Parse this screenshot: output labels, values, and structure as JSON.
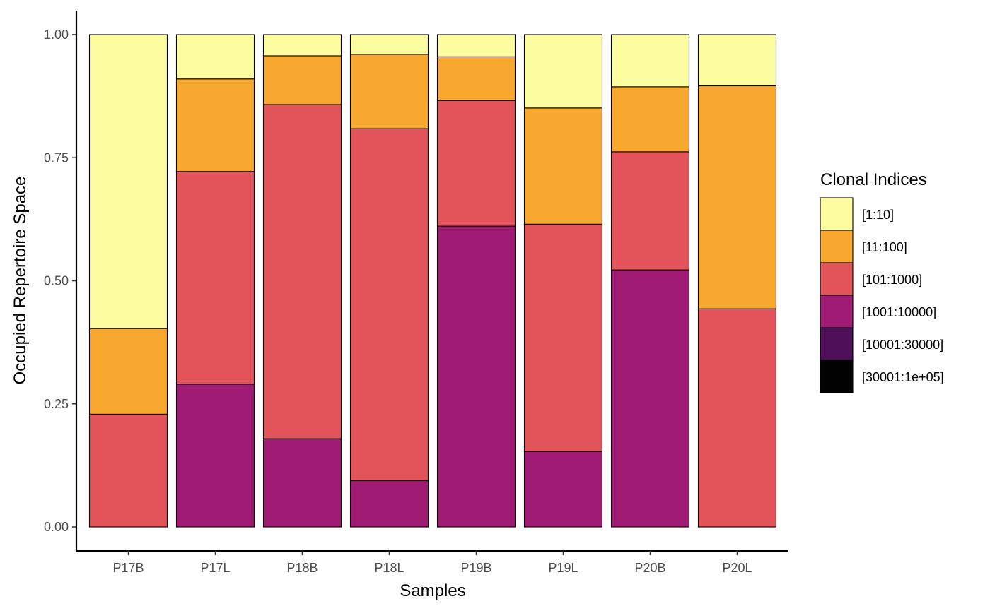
{
  "chart_data": {
    "type": "bar",
    "stacked": true,
    "title": "",
    "xlabel": "Samples",
    "ylabel": "Occupied Repertoire Space",
    "ylim": [
      0,
      1
    ],
    "yticks": [
      "0.00",
      "0.25",
      "0.50",
      "0.75",
      "1.00"
    ],
    "grid": false,
    "legend_position": "right",
    "legend_title": "Clonal Indices",
    "categories": [
      "P17B",
      "P17L",
      "P18B",
      "P18L",
      "P19B",
      "P19L",
      "P20B",
      "P20L"
    ],
    "series": [
      {
        "name": "[1:10]",
        "color": "#FCFDA0",
        "values": [
          0.597,
          0.09,
          0.043,
          0.04,
          0.045,
          0.149,
          0.106,
          0.104
        ]
      },
      {
        "name": "[11:100]",
        "color": "#F8A72F",
        "values": [
          0.174,
          0.188,
          0.099,
          0.151,
          0.089,
          0.236,
          0.132,
          0.453
        ]
      },
      {
        "name": "[101:1000]",
        "color": "#E3545A",
        "values": [
          0.229,
          0.432,
          0.679,
          0.715,
          0.255,
          0.462,
          0.24,
          0.443
        ]
      },
      {
        "name": "[1001:10000]",
        "color": "#A01B74",
        "values": [
          0.0,
          0.29,
          0.179,
          0.094,
          0.611,
          0.153,
          0.522,
          0.0
        ]
      },
      {
        "name": "[10001:30000]",
        "color": "#4D0F58",
        "values": [
          0,
          0,
          0,
          0,
          0,
          0,
          0,
          0
        ]
      },
      {
        "name": "[30001:1e+05]",
        "color": "#020202",
        "values": [
          0,
          0,
          0,
          0,
          0,
          0,
          0,
          0
        ]
      }
    ]
  }
}
